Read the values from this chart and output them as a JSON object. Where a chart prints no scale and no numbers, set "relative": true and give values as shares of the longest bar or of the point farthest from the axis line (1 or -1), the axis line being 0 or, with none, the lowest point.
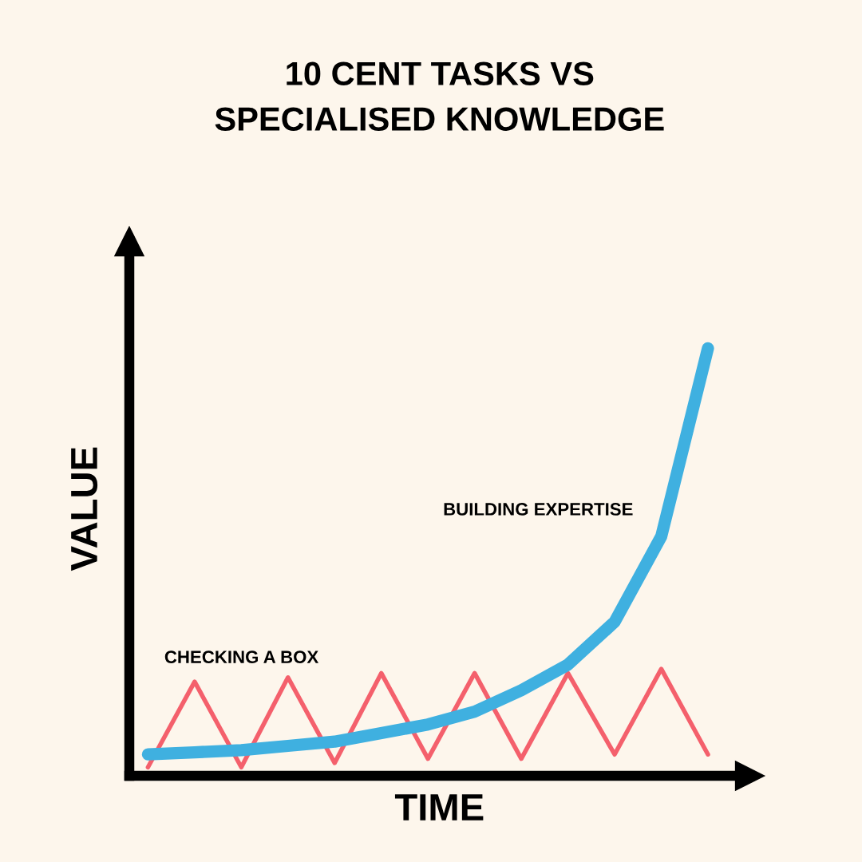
{
  "chart_data": {
    "type": "line",
    "relative": true,
    "title": "10 CENT TASKS VS\nSPECIALISED KNOWLEDGE",
    "xlabel": "TIME",
    "ylabel": "VALUE",
    "line_style": "solid",
    "categories": [
      null,
      null,
      null,
      null,
      null,
      null,
      null,
      null,
      null,
      null,
      null,
      null,
      null
    ],
    "series": [
      {
        "name": "CHECKING A BOX",
        "color": "#f4606c",
        "values": [
          0.02,
          0.22,
          0.02,
          0.23,
          0.03,
          0.24,
          0.04,
          0.24,
          0.04,
          0.24,
          0.05,
          0.25,
          0.05
        ]
      },
      {
        "name": "BUILDING EXPERTISE",
        "color": "#3fb0e0",
        "values": [
          0.05,
          0.055,
          0.06,
          0.07,
          0.08,
          0.1,
          0.12,
          0.15,
          0.2,
          0.26,
          0.36,
          0.56,
          1.0
        ]
      }
    ]
  }
}
